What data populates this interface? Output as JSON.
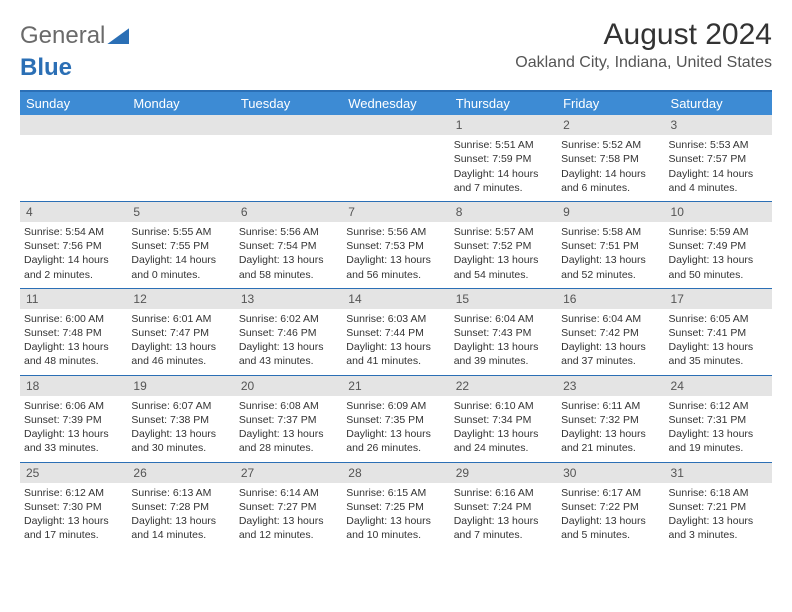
{
  "logo": {
    "text1": "General",
    "text2": "Blue"
  },
  "title": {
    "month": "August 2024",
    "location": "Oakland City, Indiana, United States"
  },
  "dow": [
    "Sunday",
    "Monday",
    "Tuesday",
    "Wednesday",
    "Thursday",
    "Friday",
    "Saturday"
  ],
  "colors": {
    "header_bg": "#3d8bd4",
    "border": "#2b6fb5",
    "daynum_bg": "#e4e4e4"
  },
  "weeks": [
    [
      null,
      null,
      null,
      null,
      {
        "n": "1",
        "sr": "5:51 AM",
        "ss": "7:59 PM",
        "dl": "14 hours and 7 minutes."
      },
      {
        "n": "2",
        "sr": "5:52 AM",
        "ss": "7:58 PM",
        "dl": "14 hours and 6 minutes."
      },
      {
        "n": "3",
        "sr": "5:53 AM",
        "ss": "7:57 PM",
        "dl": "14 hours and 4 minutes."
      }
    ],
    [
      {
        "n": "4",
        "sr": "5:54 AM",
        "ss": "7:56 PM",
        "dl": "14 hours and 2 minutes."
      },
      {
        "n": "5",
        "sr": "5:55 AM",
        "ss": "7:55 PM",
        "dl": "14 hours and 0 minutes."
      },
      {
        "n": "6",
        "sr": "5:56 AM",
        "ss": "7:54 PM",
        "dl": "13 hours and 58 minutes."
      },
      {
        "n": "7",
        "sr": "5:56 AM",
        "ss": "7:53 PM",
        "dl": "13 hours and 56 minutes."
      },
      {
        "n": "8",
        "sr": "5:57 AM",
        "ss": "7:52 PM",
        "dl": "13 hours and 54 minutes."
      },
      {
        "n": "9",
        "sr": "5:58 AM",
        "ss": "7:51 PM",
        "dl": "13 hours and 52 minutes."
      },
      {
        "n": "10",
        "sr": "5:59 AM",
        "ss": "7:49 PM",
        "dl": "13 hours and 50 minutes."
      }
    ],
    [
      {
        "n": "11",
        "sr": "6:00 AM",
        "ss": "7:48 PM",
        "dl": "13 hours and 48 minutes."
      },
      {
        "n": "12",
        "sr": "6:01 AM",
        "ss": "7:47 PM",
        "dl": "13 hours and 46 minutes."
      },
      {
        "n": "13",
        "sr": "6:02 AM",
        "ss": "7:46 PM",
        "dl": "13 hours and 43 minutes."
      },
      {
        "n": "14",
        "sr": "6:03 AM",
        "ss": "7:44 PM",
        "dl": "13 hours and 41 minutes."
      },
      {
        "n": "15",
        "sr": "6:04 AM",
        "ss": "7:43 PM",
        "dl": "13 hours and 39 minutes."
      },
      {
        "n": "16",
        "sr": "6:04 AM",
        "ss": "7:42 PM",
        "dl": "13 hours and 37 minutes."
      },
      {
        "n": "17",
        "sr": "6:05 AM",
        "ss": "7:41 PM",
        "dl": "13 hours and 35 minutes."
      }
    ],
    [
      {
        "n": "18",
        "sr": "6:06 AM",
        "ss": "7:39 PM",
        "dl": "13 hours and 33 minutes."
      },
      {
        "n": "19",
        "sr": "6:07 AM",
        "ss": "7:38 PM",
        "dl": "13 hours and 30 minutes."
      },
      {
        "n": "20",
        "sr": "6:08 AM",
        "ss": "7:37 PM",
        "dl": "13 hours and 28 minutes."
      },
      {
        "n": "21",
        "sr": "6:09 AM",
        "ss": "7:35 PM",
        "dl": "13 hours and 26 minutes."
      },
      {
        "n": "22",
        "sr": "6:10 AM",
        "ss": "7:34 PM",
        "dl": "13 hours and 24 minutes."
      },
      {
        "n": "23",
        "sr": "6:11 AM",
        "ss": "7:32 PM",
        "dl": "13 hours and 21 minutes."
      },
      {
        "n": "24",
        "sr": "6:12 AM",
        "ss": "7:31 PM",
        "dl": "13 hours and 19 minutes."
      }
    ],
    [
      {
        "n": "25",
        "sr": "6:12 AM",
        "ss": "7:30 PM",
        "dl": "13 hours and 17 minutes."
      },
      {
        "n": "26",
        "sr": "6:13 AM",
        "ss": "7:28 PM",
        "dl": "13 hours and 14 minutes."
      },
      {
        "n": "27",
        "sr": "6:14 AM",
        "ss": "7:27 PM",
        "dl": "13 hours and 12 minutes."
      },
      {
        "n": "28",
        "sr": "6:15 AM",
        "ss": "7:25 PM",
        "dl": "13 hours and 10 minutes."
      },
      {
        "n": "29",
        "sr": "6:16 AM",
        "ss": "7:24 PM",
        "dl": "13 hours and 7 minutes."
      },
      {
        "n": "30",
        "sr": "6:17 AM",
        "ss": "7:22 PM",
        "dl": "13 hours and 5 minutes."
      },
      {
        "n": "31",
        "sr": "6:18 AM",
        "ss": "7:21 PM",
        "dl": "13 hours and 3 minutes."
      }
    ]
  ],
  "labels": {
    "sunrise": "Sunrise: ",
    "sunset": "Sunset: ",
    "daylight": "Daylight: "
  }
}
